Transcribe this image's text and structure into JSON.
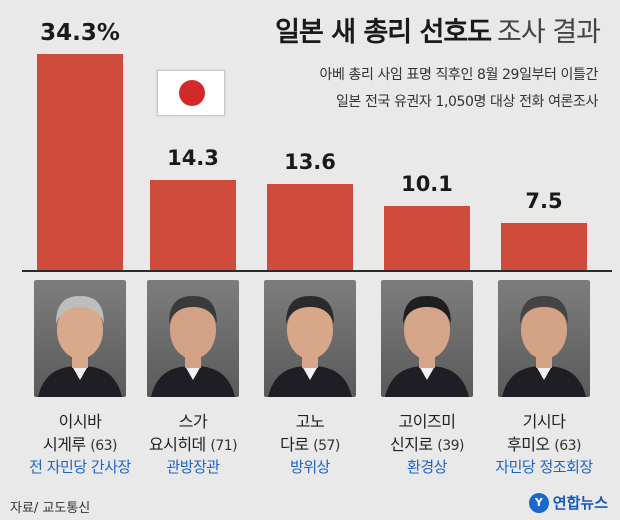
{
  "header": {
    "title_bold": "일본 새 총리 선호도",
    "title_light": "조사 결과",
    "subtitle_line1": "아베 총리 사임 표명 직후인 8월 29일부터 이틀간",
    "subtitle_line2": "일본 전국 유권자 1,050명 대상 전화 여론조사"
  },
  "flag": {
    "icon": "japan-flag-icon",
    "field": "#ffffff",
    "disc": "#d22a2a"
  },
  "colors": {
    "bar": "#cf4b3c",
    "role": "#1f63c8",
    "background": "#e9e9e9"
  },
  "chart_data": {
    "type": "bar",
    "title": "일본 새 총리 선호도 조사 결과",
    "unit": "%",
    "ylim": [
      0,
      34.3
    ],
    "grid": false,
    "categories": [
      "이시바 시게루",
      "스가 요시히데",
      "고노 다로",
      "고이즈미 신지로",
      "기시다 후미오"
    ],
    "values": [
      34.3,
      14.3,
      13.6,
      10.1,
      7.5
    ],
    "value_labels": [
      "34.3%",
      "14.3",
      "13.6",
      "10.1",
      "7.5"
    ]
  },
  "candidates": [
    {
      "name_line1": "이시바",
      "name_line2": "시게루",
      "age": "(63)",
      "role": "전 자민당 간사장",
      "photo_icon": "portrait-ishiba-photo"
    },
    {
      "name_line1": "스가",
      "name_line2": "요시히데",
      "age": "(71)",
      "role": "관방장관",
      "photo_icon": "portrait-suga-photo"
    },
    {
      "name_line1": "고노",
      "name_line2": "다로",
      "age": "(57)",
      "role": "방위상",
      "photo_icon": "portrait-kono-photo"
    },
    {
      "name_line1": "고이즈미",
      "name_line2": "신지로",
      "age": "(39)",
      "role": "환경상",
      "photo_icon": "portrait-koizumi-photo"
    },
    {
      "name_line1": "기시다",
      "name_line2": "후미오",
      "age": "(63)",
      "role": "자민당 정조회장",
      "photo_icon": "portrait-kishida-photo"
    }
  ],
  "footer": {
    "source": "자료/ 교도통신",
    "logo_mark": "Y",
    "logo_text": "연합뉴스"
  }
}
